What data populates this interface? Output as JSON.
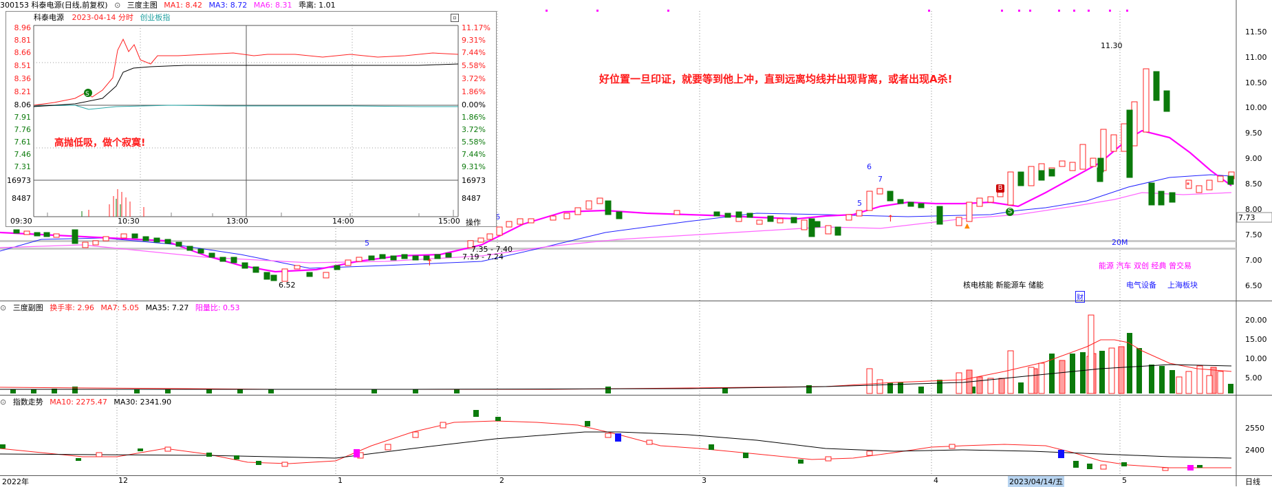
{
  "main_header": {
    "stock": "300153 科泰电源(日线,前复权)",
    "indicator": "三度主图",
    "ma1": "MA1: 8.42",
    "ma3": "MA3: 8.72",
    "ma6": "MA6: 8.31",
    "deviation": "乖离: 1.01",
    "colors": {
      "ma1": "#ff2020",
      "ma3": "#2020ff",
      "ma6": "#ff20ff"
    }
  },
  "main_axis": [
    "11.50",
    "11.00",
    "10.50",
    "10.00",
    "9.50",
    "9.00",
    "8.50",
    "8.00",
    "7.50",
    "7.00",
    "6.50"
  ],
  "price_tag": "7.73",
  "annotations": {
    "high": "11.30",
    "low": "6.52",
    "range1": "7.35 - 7.40",
    "range2": "7.19 - 7.24",
    "label_20m": "20M",
    "sector1": "能源 汽车 双创 经典 曾交易",
    "sector2": "核电核能 新能源车 储能",
    "sector3": "电气设备",
    "sector4": "上海板块",
    "cai": "财",
    "num5a": "5",
    "num5b": "5",
    "num6a": "6",
    "num6b": "6",
    "num7": "7",
    "mark_b": "B",
    "mark_s": "S"
  },
  "note_main": "好位置一旦印证，就要等到他上冲，直到远离均线并出现背离，或者出现A杀!",
  "intraday": {
    "name": "科泰电源",
    "date": "2023-04-14 分时",
    "board": "创业板指",
    "left_axis": [
      "8.96",
      "8.81",
      "8.66",
      "8.51",
      "8.36",
      "8.21",
      "8.06",
      "7.91",
      "7.76",
      "7.61",
      "7.46",
      "7.31"
    ],
    "right_axis": [
      "11.17%",
      "9.31%",
      "7.44%",
      "5.58%",
      "3.72%",
      "1.86%",
      "0.00%",
      "1.86%",
      "3.72%",
      "5.58%",
      "7.44%",
      "9.31%"
    ],
    "vol_axis": [
      "16973",
      "8487"
    ],
    "times": [
      "09:30",
      "10:30",
      "13:00",
      "14:00",
      "15:00"
    ],
    "op": "操作",
    "note": "高抛低吸，做个寂寞!"
  },
  "sub1": {
    "title": "三度副图",
    "turnover": "换手率: 2.96",
    "ma7": "MA7: 5.05",
    "ma35": "MA35: 7.27",
    "ratio": "阳量比: 0.53",
    "axis": [
      "20.00",
      "15.00",
      "10.00",
      "5.00"
    ]
  },
  "sub2": {
    "title": "指数走势",
    "ma10": "MA10: 2275.47",
    "ma30": "MA30: 2341.90",
    "axis": [
      "2550",
      "2400"
    ]
  },
  "xaxis": {
    "labels": [
      "2022年",
      "12",
      "1",
      "2",
      "3",
      "4",
      "2023/04/14/五",
      "5"
    ],
    "period": "日线"
  }
}
